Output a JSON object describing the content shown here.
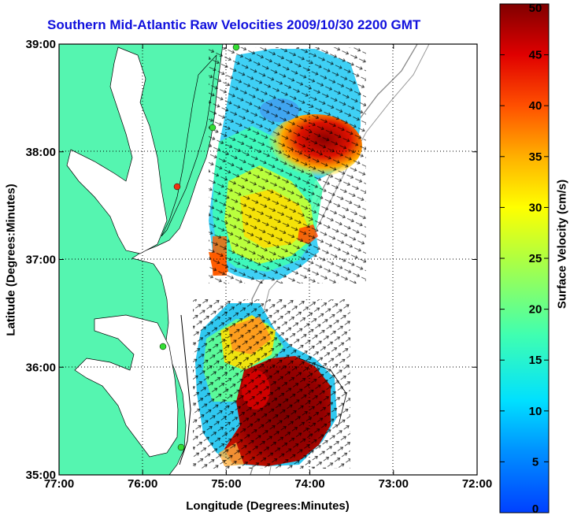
{
  "title": "Southern Mid-Atlantic Raw Velocities 2009/10/30 2200 GMT",
  "axes": {
    "xlabel": "Longitude (Degrees:Minutes)",
    "ylabel": "Latitude (Degrees:Minutes)",
    "xticks": [
      "77:00",
      "76:00",
      "75:00",
      "74:00",
      "73:00",
      "72:00"
    ],
    "yticks": [
      "39:00",
      "38:00",
      "37:00",
      "36:00",
      "35:00"
    ]
  },
  "colorbar": {
    "label": "Surface Velocity (cm/s)",
    "ticks": [
      "0",
      "5",
      "10",
      "15",
      "20",
      "25",
      "30",
      "35",
      "40",
      "45",
      "50"
    ],
    "min": 0,
    "max": 50
  },
  "colors": {
    "land": "#55f5b0",
    "water": "#ffffff",
    "title": "#1010dd",
    "station": "#33dd33",
    "station_alt": "#ee3311"
  }
}
